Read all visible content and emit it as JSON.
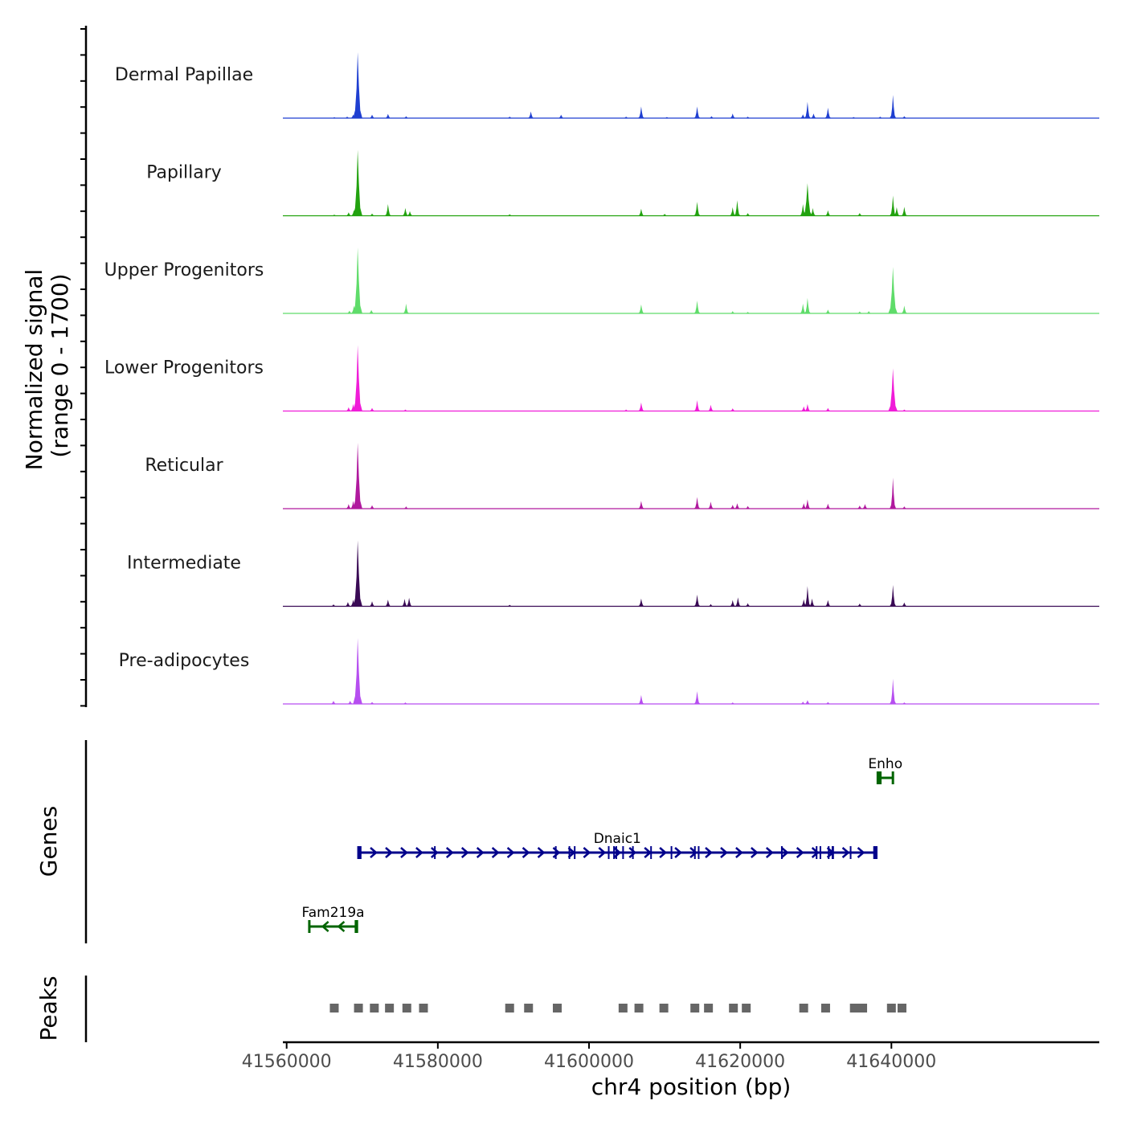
{
  "chart_data": {
    "type": "area",
    "title": "",
    "ylabel_line1": "Normalized signal",
    "ylabel_line2": "(range 0 - 1700)",
    "xlabel": "chr4 position (bp)",
    "ylim": [
      0,
      1700
    ],
    "xlim": [
      41559500,
      41667500
    ],
    "x_ticks": [
      41560000,
      41580000,
      41600000,
      41620000,
      41640000
    ],
    "x_tick_labels": [
      "41560000",
      "41580000",
      "41600000",
      "41620000",
      "41640000"
    ],
    "tracks": [
      {
        "name": "Dermal Papillae",
        "color": "#1f3fd1",
        "peaks": [
          [
            41566300,
            25
          ],
          [
            41568000,
            40
          ],
          [
            41568800,
            90
          ],
          [
            41569400,
            1700
          ],
          [
            41571300,
            90
          ],
          [
            41573400,
            110
          ],
          [
            41575800,
            50
          ],
          [
            41589500,
            40
          ],
          [
            41592300,
            170
          ],
          [
            41596300,
            90
          ],
          [
            41604900,
            40
          ],
          [
            41606900,
            300
          ],
          [
            41610300,
            30
          ],
          [
            41614300,
            300
          ],
          [
            41616200,
            50
          ],
          [
            41619000,
            120
          ],
          [
            41621000,
            40
          ],
          [
            41628300,
            100
          ],
          [
            41628900,
            420
          ],
          [
            41629700,
            120
          ],
          [
            41631600,
            270
          ],
          [
            41635000,
            30
          ],
          [
            41638500,
            40
          ],
          [
            41640200,
            600
          ],
          [
            41641700,
            50
          ]
        ]
      },
      {
        "name": "Papillary",
        "color": "#22a20f",
        "peaks": [
          [
            41566300,
            30
          ],
          [
            41568200,
            90
          ],
          [
            41568900,
            150
          ],
          [
            41569400,
            1700
          ],
          [
            41571300,
            60
          ],
          [
            41573400,
            300
          ],
          [
            41575700,
            200
          ],
          [
            41576300,
            120
          ],
          [
            41589500,
            40
          ],
          [
            41606900,
            180
          ],
          [
            41610000,
            50
          ],
          [
            41614300,
            360
          ],
          [
            41619000,
            220
          ],
          [
            41619600,
            400
          ],
          [
            41621000,
            70
          ],
          [
            41628300,
            300
          ],
          [
            41628900,
            840
          ],
          [
            41629600,
            200
          ],
          [
            41631600,
            140
          ],
          [
            41635800,
            70
          ],
          [
            41640200,
            520
          ],
          [
            41640700,
            220
          ],
          [
            41641700,
            230
          ]
        ]
      },
      {
        "name": "Upper Progenitors",
        "color": "#5fdc6a",
        "peaks": [
          [
            41568300,
            70
          ],
          [
            41568900,
            200
          ],
          [
            41569400,
            1700
          ],
          [
            41571200,
            90
          ],
          [
            41575800,
            250
          ],
          [
            41606900,
            230
          ],
          [
            41614300,
            330
          ],
          [
            41619000,
            60
          ],
          [
            41621000,
            40
          ],
          [
            41628300,
            250
          ],
          [
            41628900,
            400
          ],
          [
            41631600,
            100
          ],
          [
            41635800,
            50
          ],
          [
            41637000,
            60
          ],
          [
            41640200,
            1200
          ],
          [
            41641700,
            200
          ]
        ]
      },
      {
        "name": "Lower Progenitors",
        "color": "#f01cd8",
        "peaks": [
          [
            41568200,
            100
          ],
          [
            41568800,
            180
          ],
          [
            41569400,
            1700
          ],
          [
            41571300,
            80
          ],
          [
            41575700,
            40
          ],
          [
            41604900,
            40
          ],
          [
            41606900,
            220
          ],
          [
            41614300,
            280
          ],
          [
            41616100,
            160
          ],
          [
            41619000,
            70
          ],
          [
            41628400,
            120
          ],
          [
            41628900,
            180
          ],
          [
            41631600,
            80
          ],
          [
            41640200,
            1100
          ],
          [
            41641700,
            40
          ]
        ]
      },
      {
        "name": "Reticular",
        "color": "#b0199e",
        "peaks": [
          [
            41568200,
            120
          ],
          [
            41568800,
            200
          ],
          [
            41569400,
            1700
          ],
          [
            41571300,
            90
          ],
          [
            41575800,
            60
          ],
          [
            41606900,
            200
          ],
          [
            41614300,
            300
          ],
          [
            41616100,
            180
          ],
          [
            41619000,
            100
          ],
          [
            41619600,
            140
          ],
          [
            41621000,
            70
          ],
          [
            41628400,
            140
          ],
          [
            41628900,
            240
          ],
          [
            41631600,
            130
          ],
          [
            41635800,
            80
          ],
          [
            41636500,
            120
          ],
          [
            41640200,
            800
          ],
          [
            41641700,
            60
          ]
        ]
      },
      {
        "name": "Intermediate",
        "color": "#3a0a55",
        "peaks": [
          [
            41566200,
            50
          ],
          [
            41568100,
            110
          ],
          [
            41568800,
            170
          ],
          [
            41569400,
            1700
          ],
          [
            41571300,
            130
          ],
          [
            41573400,
            170
          ],
          [
            41575600,
            190
          ],
          [
            41576200,
            220
          ],
          [
            41589500,
            40
          ],
          [
            41606900,
            200
          ],
          [
            41614300,
            300
          ],
          [
            41616100,
            60
          ],
          [
            41619000,
            160
          ],
          [
            41619700,
            230
          ],
          [
            41621000,
            80
          ],
          [
            41628400,
            180
          ],
          [
            41628900,
            520
          ],
          [
            41629500,
            200
          ],
          [
            41631600,
            160
          ],
          [
            41635800,
            70
          ],
          [
            41640200,
            550
          ],
          [
            41641700,
            100
          ]
        ]
      },
      {
        "name": "Pre-adipocytes",
        "color": "#b64ef0",
        "peaks": [
          [
            41566200,
            80
          ],
          [
            41568400,
            80
          ],
          [
            41569400,
            1700
          ],
          [
            41571300,
            50
          ],
          [
            41575700,
            40
          ],
          [
            41606900,
            230
          ],
          [
            41614300,
            330
          ],
          [
            41619000,
            40
          ],
          [
            41628300,
            60
          ],
          [
            41628900,
            100
          ],
          [
            41631600,
            50
          ],
          [
            41640200,
            650
          ],
          [
            41641700,
            40
          ]
        ]
      }
    ],
    "genes_label": "Genes",
    "genes": [
      {
        "name": "Enho",
        "start": 41638200,
        "end": 41640200,
        "strand": "+",
        "color": "#006400",
        "row": 0,
        "exons": [
          [
            41638200,
            41638700
          ]
        ]
      },
      {
        "name": "Dnaic1",
        "start": 41569500,
        "end": 41638000,
        "strand": "+",
        "color": "#00008b",
        "row": 1,
        "exons": [
          [
            41569500,
            41569900
          ],
          [
            41579500,
            41579600
          ],
          [
            41595500,
            41595600
          ],
          [
            41597300,
            41597400
          ],
          [
            41598000,
            41598100
          ],
          [
            41602500,
            41602600
          ],
          [
            41603200,
            41603300
          ],
          [
            41603500,
            41603600
          ],
          [
            41604400,
            41604500
          ],
          [
            41605700,
            41605800
          ],
          [
            41608100,
            41608200
          ],
          [
            41610800,
            41610900
          ],
          [
            41613900,
            41614000
          ],
          [
            41614400,
            41614500
          ],
          [
            41625400,
            41625600
          ],
          [
            41630000,
            41630100
          ],
          [
            41630500,
            41630600
          ],
          [
            41631600,
            41631700
          ],
          [
            41632100,
            41632400
          ],
          [
            41634500,
            41634600
          ],
          [
            41637600,
            41638000
          ]
        ]
      },
      {
        "name": "Fam219a",
        "start": 41563000,
        "end": 41569300,
        "strand": "-",
        "color": "#006400",
        "row": 2,
        "exons": [
          [
            41569000,
            41569300
          ]
        ]
      }
    ],
    "peaks_label": "Peaks",
    "peak_regions": [
      41566300,
      41569500,
      41571600,
      41573600,
      41575900,
      41578100,
      41589500,
      41592000,
      41595800,
      41604500,
      41606600,
      41609900,
      41614000,
      41615800,
      41619100,
      41620800,
      41628400,
      41631300,
      41635100,
      41636200,
      41640000,
      41641400
    ]
  }
}
